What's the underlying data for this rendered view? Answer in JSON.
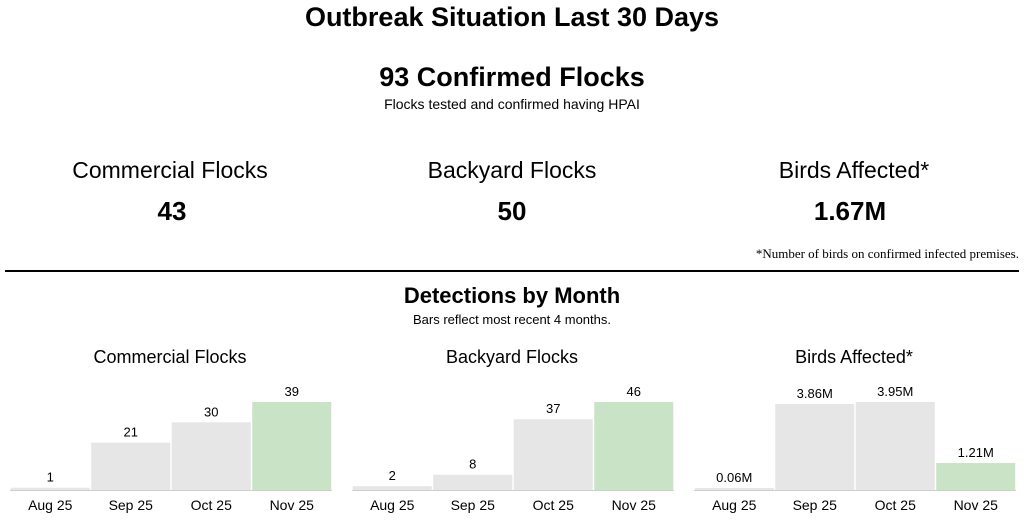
{
  "header": {
    "title": "Outbreak Situation Last 30 Days",
    "confirmed": "93 Confirmed Flocks",
    "confirmed_sub": "Flocks tested and confirmed having HPAI"
  },
  "stats": [
    {
      "label": "Commercial Flocks",
      "value": "43"
    },
    {
      "label": "Backyard Flocks",
      "value": "50"
    },
    {
      "label": "Birds Affected*",
      "value": "1.67M"
    }
  ],
  "footnote": "*Number of birds on confirmed infected premises.",
  "detections": {
    "title": "Detections by Month",
    "subtitle": "Bars reflect most recent 4 months."
  },
  "colors": {
    "bar": "#e6e6e6",
    "highlight": "#c9e3c6",
    "axis": "#cfcfcf"
  },
  "chart_data": [
    {
      "type": "bar",
      "title": "Commercial Flocks",
      "categories": [
        "Aug 25",
        "Sep 25",
        "Oct 25",
        "Nov 25"
      ],
      "values": [
        1,
        21,
        30,
        39
      ],
      "labels": [
        "1",
        "21",
        "30",
        "39"
      ],
      "highlight_index": 3,
      "ylim": [
        0,
        39
      ]
    },
    {
      "type": "bar",
      "title": "Backyard Flocks",
      "categories": [
        "Aug 25",
        "Sep 25",
        "Oct 25",
        "Nov 25"
      ],
      "values": [
        2,
        8,
        37,
        46
      ],
      "labels": [
        "2",
        "8",
        "37",
        "46"
      ],
      "highlight_index": 3,
      "ylim": [
        0,
        46
      ]
    },
    {
      "type": "bar",
      "title": "Birds Affected*",
      "categories": [
        "Aug 25",
        "Sep 25",
        "Oct 25",
        "Nov 25"
      ],
      "values": [
        0.06,
        3.86,
        3.95,
        1.21
      ],
      "labels": [
        "0.06M",
        "3.86M",
        "3.95M",
        "1.21M"
      ],
      "highlight_index": 3,
      "ylim": [
        0,
        3.95
      ]
    }
  ]
}
